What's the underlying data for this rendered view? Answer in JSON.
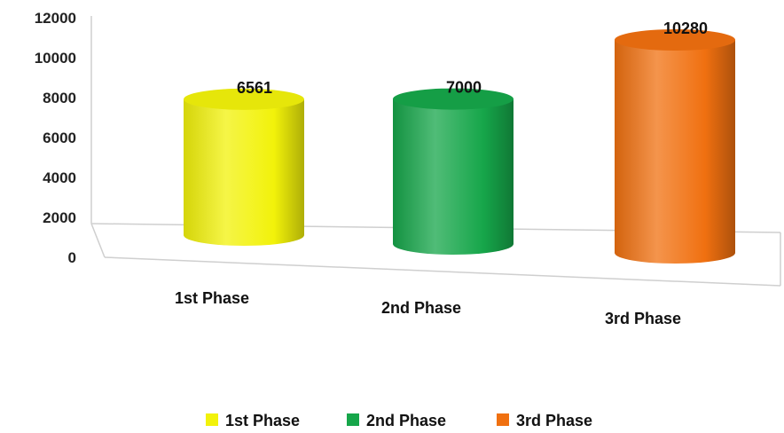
{
  "chart_data": {
    "type": "bar",
    "style": "3d-cylinder",
    "categories": [
      "1st Phase",
      "2nd Phase",
      "3rd Phase"
    ],
    "values": [
      6561,
      7000,
      10280
    ],
    "colors": [
      "#f2f20a",
      "#16a64a",
      "#f07010"
    ],
    "title": "",
    "xlabel": "",
    "ylabel": "",
    "ylim": [
      0,
      12000
    ],
    "yticks": [
      0,
      2000,
      4000,
      6000,
      8000,
      10000,
      12000
    ],
    "data_labels": true,
    "grid": false,
    "legend": {
      "position": "bottom",
      "entries": [
        "1st Phase",
        "2nd Phase",
        "3rd Phase"
      ]
    }
  }
}
